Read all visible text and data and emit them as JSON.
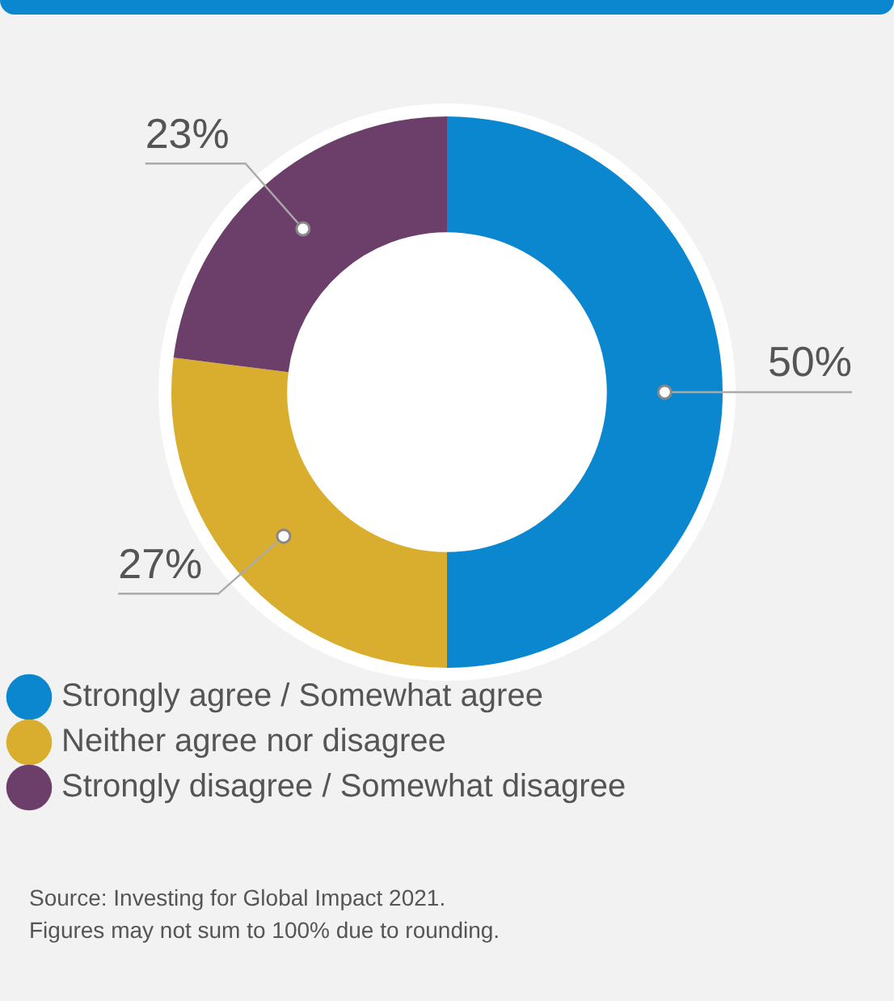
{
  "chart_data": {
    "type": "donut",
    "categories": [
      "Strongly agree / Somewhat agree",
      "Neither agree nor disagree",
      "Strongly disagree / Somewhat disagree"
    ],
    "values": [
      50,
      27,
      23
    ],
    "colors": [
      "#0a87cf",
      "#d9ae2e",
      "#6b3f6a"
    ],
    "value_labels": [
      "50%",
      "27%",
      "23%"
    ],
    "legend": "bottom",
    "annotations": [
      "Source: Investing for Global Impact 2021.",
      "Figures may not sum to 100% due to rounding."
    ]
  }
}
